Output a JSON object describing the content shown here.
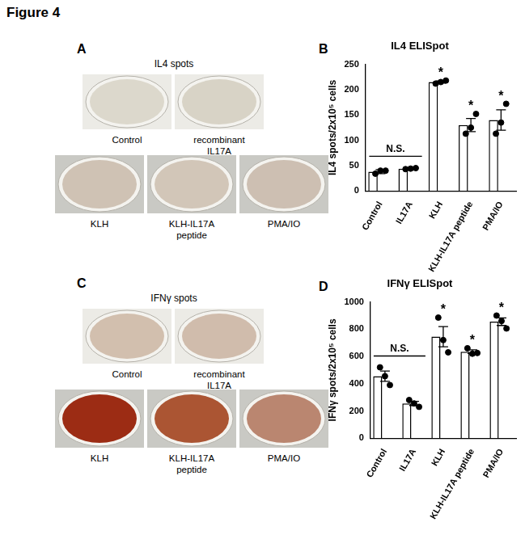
{
  "title": "Figure 4",
  "image_panels": [
    {
      "panel": "A",
      "title": "IL4 spots",
      "wells": [
        {
          "label": "Control",
          "color": "#dcd8cc"
        },
        {
          "label": "recombinant IL17A",
          "color": "#d8d3c6"
        },
        {
          "label": "KLH",
          "color": "#cfc2b4"
        },
        {
          "label": "KLH-IL17A peptide",
          "color": "#d2c6b8"
        },
        {
          "label": "PMA/IO",
          "color": "#cdbfb2"
        }
      ]
    },
    {
      "panel": "C",
      "title": "IFNγ spots",
      "wells": [
        {
          "label": "Control",
          "color": "#d2bfae"
        },
        {
          "label": "recombinant IL17A",
          "color": "#d0bcac"
        },
        {
          "label": "KLH",
          "color": "#9c2c14"
        },
        {
          "label": "KLH-IL17A peptide",
          "color": "#ab5533"
        },
        {
          "label": "PMA/IO",
          "color": "#ba8670"
        }
      ]
    }
  ],
  "chart_data": [
    {
      "panel": "B",
      "type": "bar",
      "title": "IL4 ELISpot",
      "y_label": "IL4 spots/2x10⁵ cells",
      "categories": [
        "Control",
        "IL17A",
        "KLH",
        "KLH-IL17A peptide",
        "PMA/IO"
      ],
      "values": [
        38,
        44,
        215,
        130,
        140
      ],
      "errors": [
        4,
        2,
        2,
        13,
        20
      ],
      "points": [
        [
          34,
          40,
          40
        ],
        [
          43,
          44,
          45
        ],
        [
          212,
          215,
          218
        ],
        [
          113,
          125,
          152
        ],
        [
          113,
          135,
          172
        ]
      ],
      "significance": [
        null,
        null,
        "*",
        "*",
        "*"
      ],
      "bracket": {
        "label": "N.S.",
        "from": "Control",
        "to": "IL17A"
      },
      "color": "#ffffff",
      "marker": "circle",
      "ylim": [
        0,
        250
      ],
      "yticks": [
        0,
        50,
        100,
        150,
        200,
        250
      ],
      "grid": false
    },
    {
      "panel": "D",
      "type": "bar",
      "title": "IFNγ ELISpot",
      "y_label": "IFNγ spots/2x10⁵ cells",
      "categories": [
        "Control",
        "IL17A",
        "KLH",
        "KLH-IL17A peptide",
        "PMA/IO"
      ],
      "values": [
        455,
        255,
        745,
        635,
        855
      ],
      "errors": [
        38,
        15,
        74,
        13,
        28
      ],
      "points": [
        [
          520,
          455,
          390
        ],
        [
          280,
          255,
          230
        ],
        [
          885,
          720,
          630
        ],
        [
          660,
          620,
          625
        ],
        [
          900,
          860,
          805
        ]
      ],
      "significance": [
        null,
        null,
        "*",
        "*",
        "*"
      ],
      "bracket": {
        "label": "N.S.",
        "from": "Control",
        "to": "IL17A"
      },
      "color": "#ffffff",
      "marker": "circle",
      "ylim": [
        0,
        1000
      ],
      "yticks": [
        0,
        200,
        400,
        600,
        800,
        1000
      ],
      "grid": false
    }
  ]
}
